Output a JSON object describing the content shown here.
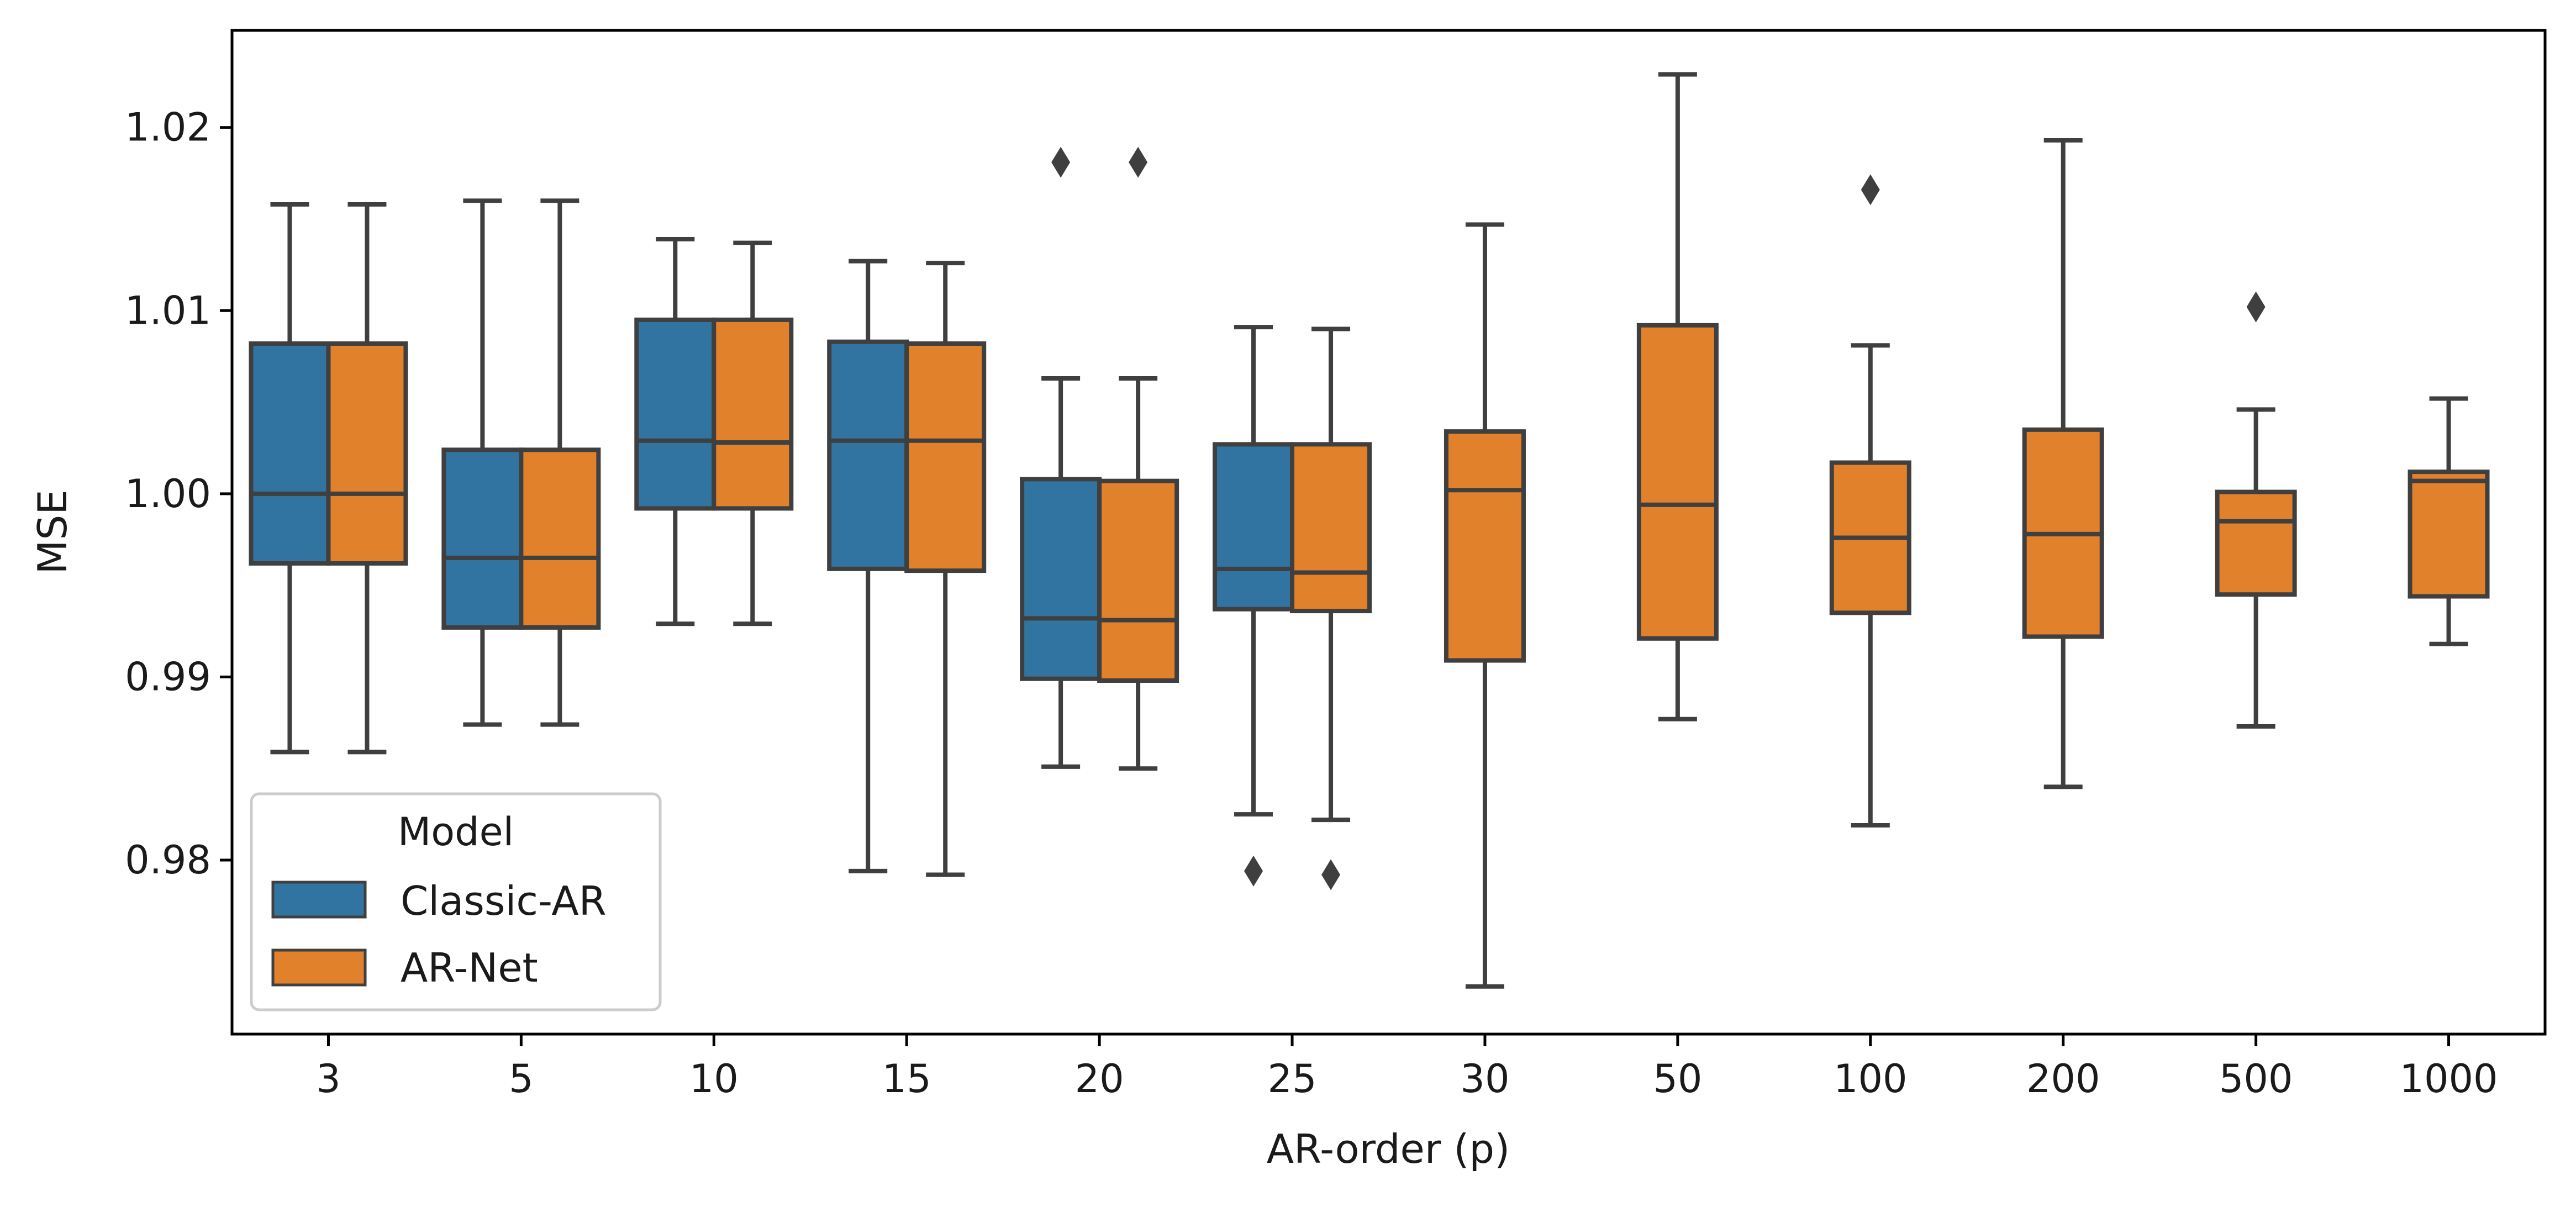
{
  "chart_data": {
    "type": "box",
    "xlabel": "AR-order (p)",
    "ylabel": "MSE",
    "ylim": [
      0.9705,
      1.0253
    ],
    "yticks": [
      0.98,
      0.99,
      1.0,
      1.01,
      1.02
    ],
    "ytick_labels": [
      "0.98",
      "0.99",
      "1.00",
      "1.01",
      "1.02"
    ],
    "categories": [
      "3",
      "5",
      "10",
      "15",
      "20",
      "25",
      "30",
      "50",
      "100",
      "200",
      "500",
      "1000"
    ],
    "legend": {
      "title": "Model",
      "position": "lower-left"
    },
    "grid": false,
    "series": [
      {
        "name": "Classic-AR",
        "color": "#3274a1",
        "boxes": [
          {
            "category": "3",
            "whislo": 0.9859,
            "q1": 0.9962,
            "med": 1.0,
            "q3": 1.0082,
            "whishi": 1.0158,
            "fliers": []
          },
          {
            "category": "5",
            "whislo": 0.9874,
            "q1": 0.9927,
            "med": 0.9965,
            "q3": 1.0024,
            "whishi": 1.016,
            "fliers": []
          },
          {
            "category": "10",
            "whislo": 0.9929,
            "q1": 0.9992,
            "med": 1.0029,
            "q3": 1.0095,
            "whishi": 1.0139,
            "fliers": []
          },
          {
            "category": "15",
            "whislo": 0.9794,
            "q1": 0.9959,
            "med": 1.0029,
            "q3": 1.0083,
            "whishi": 1.0127,
            "fliers": []
          },
          {
            "category": "20",
            "whislo": 0.9851,
            "q1": 0.9899,
            "med": 0.9932,
            "q3": 1.0008,
            "whishi": 1.0063,
            "fliers": [
              1.0181
            ]
          },
          {
            "category": "25",
            "whislo": 0.9825,
            "q1": 0.9937,
            "med": 0.9959,
            "q3": 1.0027,
            "whishi": 1.0091,
            "fliers": [
              0.9794
            ]
          }
        ]
      },
      {
        "name": "AR-Net",
        "color": "#e1812c",
        "boxes": [
          {
            "category": "3",
            "whislo": 0.9859,
            "q1": 0.9962,
            "med": 1.0,
            "q3": 1.0082,
            "whishi": 1.0158,
            "fliers": []
          },
          {
            "category": "5",
            "whislo": 0.9874,
            "q1": 0.9927,
            "med": 0.9965,
            "q3": 1.0024,
            "whishi": 1.016,
            "fliers": []
          },
          {
            "category": "10",
            "whislo": 0.9929,
            "q1": 0.9992,
            "med": 1.0028,
            "q3": 1.0095,
            "whishi": 1.0137,
            "fliers": []
          },
          {
            "category": "15",
            "whislo": 0.9792,
            "q1": 0.9958,
            "med": 1.0029,
            "q3": 1.0082,
            "whishi": 1.0126,
            "fliers": []
          },
          {
            "category": "20",
            "whislo": 0.985,
            "q1": 0.9898,
            "med": 0.9931,
            "q3": 1.0007,
            "whishi": 1.0063,
            "fliers": [
              1.0181
            ]
          },
          {
            "category": "25",
            "whislo": 0.9822,
            "q1": 0.9936,
            "med": 0.9957,
            "q3": 1.0027,
            "whishi": 1.009,
            "fliers": [
              0.9792
            ]
          },
          {
            "category": "30",
            "whislo": 0.9731,
            "q1": 0.9909,
            "med": 1.0002,
            "q3": 1.0034,
            "whishi": 1.0147,
            "fliers": []
          },
          {
            "category": "50",
            "whislo": 0.9877,
            "q1": 0.9921,
            "med": 0.9994,
            "q3": 1.0092,
            "whishi": 1.0229,
            "fliers": []
          },
          {
            "category": "100",
            "whislo": 0.9819,
            "q1": 0.9935,
            "med": 0.9976,
            "q3": 1.0017,
            "whishi": 1.0081,
            "fliers": [
              1.0166
            ]
          },
          {
            "category": "200",
            "whislo": 0.984,
            "q1": 0.9922,
            "med": 0.9978,
            "q3": 1.0035,
            "whishi": 1.0193,
            "fliers": []
          },
          {
            "category": "500",
            "whislo": 0.9873,
            "q1": 0.9945,
            "med": 0.9985,
            "q3": 1.0001,
            "whishi": 1.0046,
            "fliers": [
              1.0102
            ]
          },
          {
            "category": "1000",
            "whislo": 0.9918,
            "q1": 0.9944,
            "med": 1.0007,
            "q3": 1.0012,
            "whishi": 1.0052,
            "fliers": []
          }
        ]
      }
    ]
  }
}
